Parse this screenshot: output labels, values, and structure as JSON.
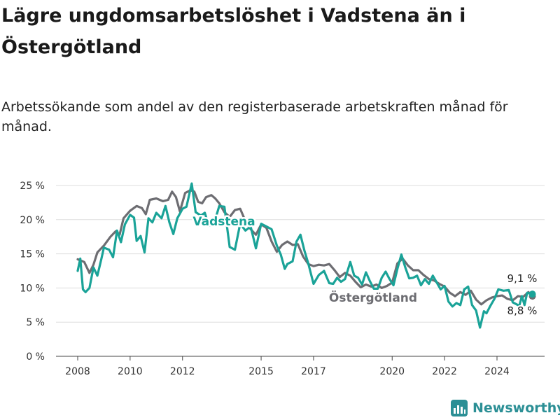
{
  "header": {
    "title": "Lägre ungdomsarbetslöshet i Vadstena än i Östergötland",
    "subtitle": "Arbetssökande som andel av den registerbaserade arbetskraften månad för månad."
  },
  "branding": {
    "logo_text": "Newsworthy",
    "logo_icon": "bar-chart-icon",
    "logo_color": "#2b8f95"
  },
  "chart_data": {
    "type": "line",
    "ylim": [
      0,
      25
    ],
    "y_ticks": [
      {
        "value": 0,
        "label": "0 %"
      },
      {
        "value": 5,
        "label": "5 %"
      },
      {
        "value": 10,
        "label": "10 %"
      },
      {
        "value": 15,
        "label": "15 %"
      },
      {
        "value": 20,
        "label": "20 %"
      },
      {
        "value": 25,
        "label": "25 %"
      }
    ],
    "x_ticks": [
      {
        "value": 2008,
        "label": "2008"
      },
      {
        "value": 2010,
        "label": "2010"
      },
      {
        "value": 2012,
        "label": "2012"
      },
      {
        "value": 2015,
        "label": "2015"
      },
      {
        "value": 2017,
        "label": "2017"
      },
      {
        "value": 2020,
        "label": "2020"
      },
      {
        "value": 2022,
        "label": "2022"
      },
      {
        "value": 2024,
        "label": "2024"
      }
    ],
    "grid": "horizontal",
    "series": [
      {
        "name": "Östergötland",
        "color": "#6d6d72",
        "end_label": "8,8 %",
        "points": [
          [
            2008.0,
            14.2
          ],
          [
            2008.25,
            13.8
          ],
          [
            2008.45,
            12.2
          ],
          [
            2008.6,
            13.4
          ],
          [
            2008.75,
            15.2
          ],
          [
            2009.0,
            16.2
          ],
          [
            2009.25,
            17.5
          ],
          [
            2009.45,
            18.3
          ],
          [
            2009.6,
            17.8
          ],
          [
            2009.75,
            20.2
          ],
          [
            2010.0,
            21.3
          ],
          [
            2010.25,
            22.0
          ],
          [
            2010.45,
            21.7
          ],
          [
            2010.6,
            20.8
          ],
          [
            2010.75,
            22.9
          ],
          [
            2011.0,
            23.1
          ],
          [
            2011.25,
            22.7
          ],
          [
            2011.45,
            22.9
          ],
          [
            2011.6,
            24.1
          ],
          [
            2011.75,
            23.3
          ],
          [
            2011.9,
            21.2
          ],
          [
            2012.1,
            23.9
          ],
          [
            2012.3,
            24.3
          ],
          [
            2012.45,
            24.1
          ],
          [
            2012.6,
            22.6
          ],
          [
            2012.75,
            22.4
          ],
          [
            2012.9,
            23.3
          ],
          [
            2013.1,
            23.6
          ],
          [
            2013.25,
            23.1
          ],
          [
            2013.4,
            22.4
          ],
          [
            2013.6,
            21.1
          ],
          [
            2013.8,
            20.4
          ],
          [
            2014.0,
            21.4
          ],
          [
            2014.2,
            21.6
          ],
          [
            2014.4,
            19.8
          ],
          [
            2014.6,
            18.6
          ],
          [
            2014.8,
            17.8
          ],
          [
            2015.0,
            19.3
          ],
          [
            2015.2,
            18.8
          ],
          [
            2015.4,
            16.8
          ],
          [
            2015.6,
            15.3
          ],
          [
            2015.8,
            16.3
          ],
          [
            2016.0,
            16.8
          ],
          [
            2016.2,
            16.3
          ],
          [
            2016.4,
            16.4
          ],
          [
            2016.6,
            14.6
          ],
          [
            2016.8,
            13.5
          ],
          [
            2017.0,
            13.2
          ],
          [
            2017.2,
            13.4
          ],
          [
            2017.4,
            13.3
          ],
          [
            2017.6,
            13.5
          ],
          [
            2017.8,
            12.6
          ],
          [
            2018.0,
            11.6
          ],
          [
            2018.2,
            12.2
          ],
          [
            2018.4,
            11.8
          ],
          [
            2018.6,
            10.9
          ],
          [
            2018.8,
            10.1
          ],
          [
            2019.0,
            10.5
          ],
          [
            2019.2,
            10.2
          ],
          [
            2019.4,
            10.5
          ],
          [
            2019.6,
            10.0
          ],
          [
            2019.8,
            10.3
          ],
          [
            2020.0,
            10.8
          ],
          [
            2020.2,
            13.6
          ],
          [
            2020.4,
            14.3
          ],
          [
            2020.6,
            13.3
          ],
          [
            2020.8,
            12.6
          ],
          [
            2021.0,
            12.6
          ],
          [
            2021.2,
            11.9
          ],
          [
            2021.4,
            11.3
          ],
          [
            2021.6,
            11.1
          ],
          [
            2021.8,
            10.6
          ],
          [
            2022.0,
            10.2
          ],
          [
            2022.2,
            9.3
          ],
          [
            2022.4,
            8.8
          ],
          [
            2022.6,
            9.4
          ],
          [
            2022.8,
            9.0
          ],
          [
            2023.0,
            9.6
          ],
          [
            2023.2,
            8.3
          ],
          [
            2023.4,
            7.6
          ],
          [
            2023.6,
            8.2
          ],
          [
            2023.8,
            8.6
          ],
          [
            2024.0,
            8.8
          ],
          [
            2024.2,
            8.9
          ],
          [
            2024.4,
            8.4
          ],
          [
            2024.6,
            8.2
          ],
          [
            2024.8,
            8.8
          ],
          [
            2025.0,
            8.7
          ],
          [
            2025.2,
            9.4
          ],
          [
            2025.35,
            8.8
          ]
        ]
      },
      {
        "name": "Vadstena",
        "color": "#1aa398",
        "end_label": "9,1 %",
        "points": [
          [
            2008.0,
            12.5
          ],
          [
            2008.1,
            14.3
          ],
          [
            2008.2,
            9.8
          ],
          [
            2008.3,
            9.4
          ],
          [
            2008.45,
            10.0
          ],
          [
            2008.6,
            13.0
          ],
          [
            2008.75,
            11.8
          ],
          [
            2008.9,
            14.2
          ],
          [
            2009.0,
            15.9
          ],
          [
            2009.2,
            15.6
          ],
          [
            2009.35,
            14.5
          ],
          [
            2009.5,
            18.4
          ],
          [
            2009.65,
            16.7
          ],
          [
            2009.8,
            19.3
          ],
          [
            2010.0,
            20.7
          ],
          [
            2010.15,
            20.3
          ],
          [
            2010.25,
            16.9
          ],
          [
            2010.4,
            17.6
          ],
          [
            2010.55,
            15.2
          ],
          [
            2010.7,
            20.2
          ],
          [
            2010.85,
            19.6
          ],
          [
            2011.0,
            21.0
          ],
          [
            2011.2,
            20.2
          ],
          [
            2011.35,
            22.0
          ],
          [
            2011.5,
            19.6
          ],
          [
            2011.65,
            17.9
          ],
          [
            2011.8,
            20.2
          ],
          [
            2012.0,
            21.6
          ],
          [
            2012.15,
            21.9
          ],
          [
            2012.35,
            25.3
          ],
          [
            2012.5,
            21.1
          ],
          [
            2012.7,
            20.6
          ],
          [
            2012.85,
            21.0
          ],
          [
            2013.0,
            19.1
          ],
          [
            2013.2,
            19.4
          ],
          [
            2013.4,
            22.0
          ],
          [
            2013.6,
            21.9
          ],
          [
            2013.8,
            16.0
          ],
          [
            2014.0,
            15.6
          ],
          [
            2014.2,
            19.4
          ],
          [
            2014.4,
            18.4
          ],
          [
            2014.6,
            19.0
          ],
          [
            2014.8,
            15.8
          ],
          [
            2015.0,
            19.4
          ],
          [
            2015.2,
            19.0
          ],
          [
            2015.4,
            18.6
          ],
          [
            2015.6,
            16.2
          ],
          [
            2015.75,
            14.9
          ],
          [
            2015.9,
            12.8
          ],
          [
            2016.0,
            13.5
          ],
          [
            2016.2,
            13.9
          ],
          [
            2016.35,
            16.8
          ],
          [
            2016.5,
            17.8
          ],
          [
            2016.65,
            15.5
          ],
          [
            2016.8,
            13.6
          ],
          [
            2017.0,
            10.6
          ],
          [
            2017.2,
            11.9
          ],
          [
            2017.4,
            12.5
          ],
          [
            2017.6,
            10.7
          ],
          [
            2017.75,
            10.6
          ],
          [
            2017.9,
            11.5
          ],
          [
            2018.05,
            10.9
          ],
          [
            2018.2,
            11.3
          ],
          [
            2018.4,
            13.8
          ],
          [
            2018.55,
            11.8
          ],
          [
            2018.7,
            11.5
          ],
          [
            2018.85,
            10.5
          ],
          [
            2019.0,
            12.3
          ],
          [
            2019.15,
            11.0
          ],
          [
            2019.3,
            9.9
          ],
          [
            2019.45,
            9.9
          ],
          [
            2019.6,
            11.5
          ],
          [
            2019.75,
            12.4
          ],
          [
            2019.9,
            11.3
          ],
          [
            2020.05,
            10.4
          ],
          [
            2020.2,
            12.8
          ],
          [
            2020.35,
            14.9
          ],
          [
            2020.5,
            13.0
          ],
          [
            2020.65,
            11.4
          ],
          [
            2020.8,
            11.5
          ],
          [
            2020.95,
            11.8
          ],
          [
            2021.1,
            10.4
          ],
          [
            2021.25,
            11.3
          ],
          [
            2021.4,
            10.6
          ],
          [
            2021.55,
            11.8
          ],
          [
            2021.7,
            10.8
          ],
          [
            2021.85,
            9.8
          ],
          [
            2022.0,
            10.3
          ],
          [
            2022.15,
            8.0
          ],
          [
            2022.3,
            7.3
          ],
          [
            2022.45,
            7.8
          ],
          [
            2022.6,
            7.5
          ],
          [
            2022.75,
            9.8
          ],
          [
            2022.9,
            10.2
          ],
          [
            2023.05,
            7.5
          ],
          [
            2023.2,
            6.7
          ],
          [
            2023.35,
            4.2
          ],
          [
            2023.5,
            6.6
          ],
          [
            2023.6,
            6.3
          ],
          [
            2023.75,
            7.4
          ],
          [
            2023.9,
            8.4
          ],
          [
            2024.05,
            9.8
          ],
          [
            2024.25,
            9.6
          ],
          [
            2024.45,
            9.7
          ],
          [
            2024.6,
            7.9
          ],
          [
            2024.75,
            7.6
          ],
          [
            2024.85,
            7.4
          ],
          [
            2024.95,
            8.8
          ],
          [
            2025.05,
            7.5
          ],
          [
            2025.15,
            9.3
          ],
          [
            2025.35,
            9.1
          ]
        ]
      }
    ]
  }
}
